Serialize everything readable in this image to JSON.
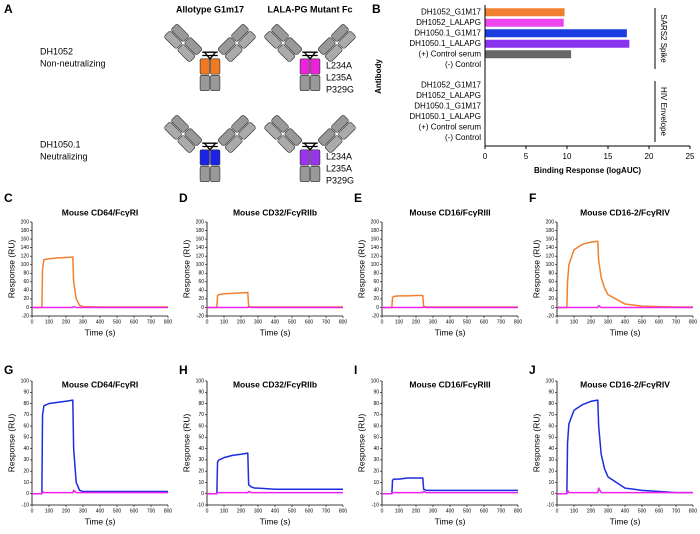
{
  "diagram": {
    "panel": "A",
    "columns": [
      "Allotype G1m17",
      "LALA-PG Mutant Fc"
    ],
    "rows": [
      {
        "name": "DH1052",
        "description": "Non-neutralizing",
        "mutations": [
          "L234A",
          "L235A",
          "P329G"
        ]
      },
      {
        "name": "DH1050.1",
        "description": "Neutralizing",
        "mutations": [
          "L234A",
          "L235A",
          "P329G"
        ]
      }
    ]
  },
  "chart_data": [
    {
      "type": "bar",
      "panel": "B",
      "orientation": "horizontal",
      "xlabel": "Binding Response (logAUC)",
      "ylabel": "Antibody",
      "xlim": [
        0,
        25
      ],
      "xticks": [
        0,
        5,
        10,
        15,
        20,
        25
      ],
      "groups": [
        {
          "name": "SARS2 Spike",
          "categories": [
            "DH1052_G1M17",
            "DH1052_LALAPG",
            "DH1050.1_G1M17",
            "DH1050.1_LALAPG",
            "(+) Control serum",
            "(-) Control"
          ],
          "values": [
            9.7,
            9.6,
            17.3,
            17.6,
            10.5,
            0
          ],
          "colors": [
            "#f08030",
            "#ee44ee",
            "#1a3de0",
            "#8833ee",
            "#666666",
            "#666666"
          ]
        },
        {
          "name": "HIV Envelope",
          "categories": [
            "DH1052_G1M17",
            "DH1052_LALAPG",
            "DH1050.1_G1M17",
            "DH1050.1_LALAPG",
            "(+) Control serum",
            "(-) Control"
          ],
          "values": [
            0,
            0,
            0,
            0,
            0,
            0
          ],
          "colors": [
            "#f08030",
            "#ee44ee",
            "#1a3de0",
            "#8833ee",
            "#666666",
            "#666666"
          ]
        }
      ]
    },
    {
      "type": "line",
      "panel": "C",
      "title": "Mouse CD64/FcγRI",
      "xlabel": "Time (s)",
      "ylabel": "Response (RU)",
      "xlim": [
        0,
        800
      ],
      "xticks": [
        0,
        100,
        200,
        300,
        400,
        500,
        600,
        700,
        800
      ],
      "ylim": [
        -20,
        200
      ],
      "yticks": [
        -20,
        0,
        20,
        40,
        60,
        80,
        100,
        120,
        140,
        160,
        180,
        200
      ],
      "x": [
        0,
        58,
        62,
        70,
        100,
        150,
        200,
        240,
        245,
        260,
        280,
        300,
        400,
        500,
        600,
        700,
        800
      ],
      "series": [
        {
          "color": "#f08030",
          "values": [
            0,
            0,
            90,
            112,
            114,
            116,
            117,
            118,
            60,
            20,
            5,
            2,
            1,
            1,
            1,
            1,
            1
          ]
        },
        {
          "color": "#ee22ee",
          "values": [
            0,
            0,
            0,
            0,
            0,
            0,
            0,
            0,
            2,
            0,
            0,
            0,
            0,
            0,
            0,
            0,
            0
          ]
        }
      ]
    },
    {
      "type": "line",
      "panel": "D",
      "title": "Mouse CD32/FcγRIIb",
      "xlabel": "Time (s)",
      "ylabel": "Response (RU)",
      "xlim": [
        0,
        800
      ],
      "xticks": [
        0,
        100,
        200,
        300,
        400,
        500,
        600,
        700,
        800
      ],
      "ylim": [
        -20,
        200
      ],
      "yticks": [
        -20,
        0,
        20,
        40,
        60,
        80,
        100,
        120,
        140,
        160,
        180,
        200
      ],
      "x": [
        0,
        58,
        62,
        70,
        100,
        150,
        200,
        240,
        245,
        260,
        280,
        300,
        400,
        500,
        600,
        700,
        800
      ],
      "series": [
        {
          "color": "#f08030",
          "values": [
            0,
            0,
            28,
            30,
            32,
            33,
            34,
            35,
            2,
            1,
            1,
            1,
            1,
            1,
            1,
            1,
            1
          ]
        },
        {
          "color": "#ee22ee",
          "values": [
            0,
            0,
            0,
            0,
            0,
            0,
            0,
            0,
            1,
            0,
            0,
            0,
            0,
            0,
            0,
            0,
            0
          ]
        }
      ]
    },
    {
      "type": "line",
      "panel": "E",
      "title": "Mouse CD16/FcγRIII",
      "xlabel": "Time (s)",
      "ylabel": "Response (RU)",
      "xlim": [
        0,
        800
      ],
      "xticks": [
        0,
        100,
        200,
        300,
        400,
        500,
        600,
        700,
        800
      ],
      "ylim": [
        -20,
        200
      ],
      "yticks": [
        -20,
        0,
        20,
        40,
        60,
        80,
        100,
        120,
        140,
        160,
        180,
        200
      ],
      "x": [
        0,
        58,
        62,
        70,
        100,
        150,
        200,
        240,
        245,
        260,
        280,
        300,
        400,
        500,
        600,
        700,
        800
      ],
      "series": [
        {
          "color": "#f08030",
          "values": [
            0,
            0,
            24,
            26,
            27,
            27,
            28,
            28,
            2,
            1,
            1,
            1,
            1,
            1,
            1,
            1,
            1
          ]
        },
        {
          "color": "#ee22ee",
          "values": [
            0,
            0,
            0,
            0,
            0,
            0,
            0,
            0,
            1,
            0,
            0,
            0,
            0,
            0,
            0,
            0,
            0
          ]
        }
      ]
    },
    {
      "type": "line",
      "panel": "F",
      "title": "Mouse CD16-2/FcγRIV",
      "xlabel": "Time (s)",
      "ylabel": "Response (RU)",
      "xlim": [
        0,
        800
      ],
      "xticks": [
        0,
        100,
        200,
        300,
        400,
        500,
        600,
        700,
        800
      ],
      "ylim": [
        -20,
        200
      ],
      "yticks": [
        -20,
        0,
        20,
        40,
        60,
        80,
        100,
        120,
        140,
        160,
        180,
        200
      ],
      "x": [
        0,
        58,
        62,
        70,
        100,
        150,
        200,
        240,
        245,
        260,
        280,
        300,
        400,
        500,
        600,
        700,
        800
      ],
      "series": [
        {
          "color": "#f08030",
          "values": [
            0,
            0,
            60,
            100,
            135,
            148,
            153,
            155,
            110,
            70,
            45,
            30,
            8,
            3,
            2,
            1,
            1
          ]
        },
        {
          "color": "#ee22ee",
          "values": [
            0,
            0,
            0,
            0,
            0,
            0,
            0,
            0,
            4,
            0,
            0,
            0,
            0,
            0,
            0,
            0,
            0
          ]
        }
      ]
    },
    {
      "type": "line",
      "panel": "G",
      "title": "Mouse CD64/FcγRI",
      "xlabel": "Time (s)",
      "ylabel": "Response (RU)",
      "xlim": [
        0,
        800
      ],
      "xticks": [
        0,
        100,
        200,
        300,
        400,
        500,
        600,
        700,
        800
      ],
      "ylim": [
        -10,
        100
      ],
      "yticks": [
        -10,
        0,
        10,
        20,
        30,
        40,
        50,
        60,
        70,
        80,
        90,
        100
      ],
      "x": [
        0,
        58,
        62,
        70,
        100,
        150,
        200,
        240,
        245,
        260,
        280,
        300,
        400,
        500,
        600,
        700,
        800
      ],
      "series": [
        {
          "color": "#1a2de0",
          "values": [
            0,
            0,
            70,
            78,
            80,
            81,
            82,
            83,
            40,
            10,
            3,
            2,
            2,
            2,
            2,
            2,
            2
          ]
        },
        {
          "color": "#ee22ee",
          "values": [
            0,
            0,
            2,
            1,
            1,
            1,
            1,
            1,
            3,
            1,
            1,
            1,
            1,
            1,
            1,
            1,
            1
          ]
        }
      ]
    },
    {
      "type": "line",
      "panel": "H",
      "title": "Mouse CD32/FcγRIIb",
      "xlabel": "Time (s)",
      "ylabel": "Response (RU)",
      "xlim": [
        0,
        800
      ],
      "xticks": [
        0,
        100,
        200,
        300,
        400,
        500,
        600,
        700,
        800
      ],
      "ylim": [
        -10,
        100
      ],
      "yticks": [
        -10,
        0,
        10,
        20,
        30,
        40,
        50,
        60,
        70,
        80,
        90,
        100
      ],
      "x": [
        0,
        58,
        62,
        70,
        100,
        150,
        200,
        240,
        245,
        260,
        280,
        300,
        400,
        500,
        600,
        700,
        800
      ],
      "series": [
        {
          "color": "#1a2de0",
          "values": [
            0,
            0,
            28,
            30,
            32,
            34,
            35,
            36,
            8,
            6,
            5,
            5,
            4,
            4,
            4,
            4,
            4
          ]
        },
        {
          "color": "#ee22ee",
          "values": [
            0,
            0,
            1,
            1,
            1,
            1,
            1,
            1,
            2,
            1,
            1,
            1,
            1,
            1,
            1,
            1,
            1
          ]
        }
      ]
    },
    {
      "type": "line",
      "panel": "I",
      "title": "Mouse CD16/FcγRIII",
      "xlabel": "Time (s)",
      "ylabel": "Response (RU)",
      "xlim": [
        0,
        800
      ],
      "xticks": [
        0,
        100,
        200,
        300,
        400,
        500,
        600,
        700,
        800
      ],
      "ylim": [
        -10,
        100
      ],
      "yticks": [
        -10,
        0,
        10,
        20,
        30,
        40,
        50,
        60,
        70,
        80,
        90,
        100
      ],
      "x": [
        0,
        58,
        62,
        70,
        100,
        150,
        200,
        240,
        245,
        260,
        280,
        300,
        400,
        500,
        600,
        700,
        800
      ],
      "series": [
        {
          "color": "#1a2de0",
          "values": [
            0,
            0,
            12,
            13,
            13,
            14,
            14,
            14,
            4,
            3,
            3,
            3,
            3,
            3,
            3,
            3,
            3
          ]
        },
        {
          "color": "#ee22ee",
          "values": [
            0,
            0,
            1,
            1,
            1,
            1,
            1,
            1,
            2,
            1,
            1,
            1,
            1,
            1,
            1,
            1,
            1
          ]
        }
      ]
    },
    {
      "type": "line",
      "panel": "J",
      "title": "Mouse CD16-2/FcγRIV",
      "xlabel": "Time (s)",
      "ylabel": "Response (RU)",
      "xlim": [
        0,
        800
      ],
      "xticks": [
        0,
        100,
        200,
        300,
        400,
        500,
        600,
        700,
        800
      ],
      "ylim": [
        -10,
        100
      ],
      "yticks": [
        -10,
        0,
        10,
        20,
        30,
        40,
        50,
        60,
        70,
        80,
        90,
        100
      ],
      "x": [
        0,
        58,
        62,
        70,
        100,
        150,
        200,
        240,
        245,
        260,
        280,
        300,
        400,
        500,
        600,
        700,
        800
      ],
      "series": [
        {
          "color": "#1a2de0",
          "values": [
            0,
            0,
            45,
            62,
            74,
            79,
            82,
            83,
            60,
            35,
            22,
            15,
            5,
            3,
            2,
            1,
            1
          ]
        },
        {
          "color": "#ee22ee",
          "values": [
            0,
            0,
            3,
            1,
            1,
            1,
            1,
            1,
            5,
            1,
            1,
            1,
            1,
            1,
            1,
            1,
            1
          ]
        }
      ]
    }
  ]
}
